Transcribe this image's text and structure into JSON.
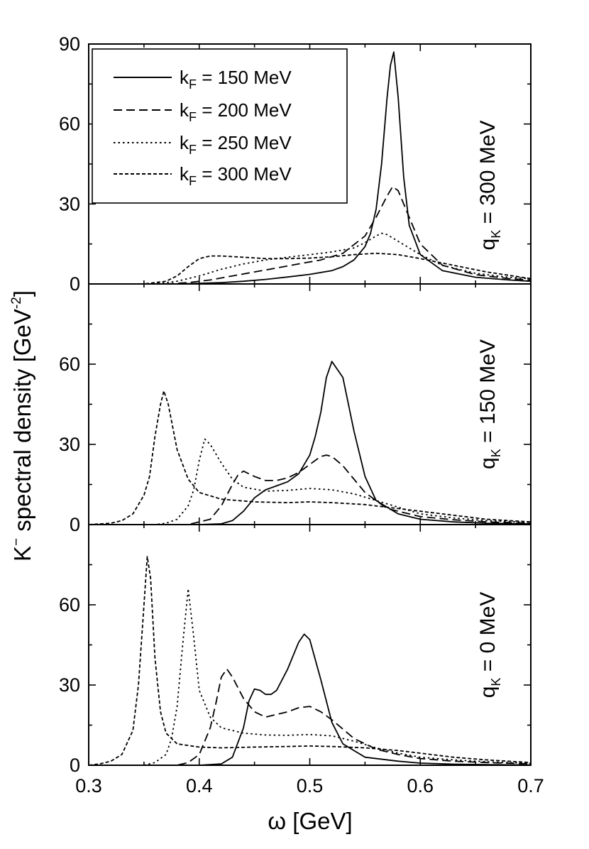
{
  "chart_data": {
    "type": "line",
    "xlabel": "ω [GeV]",
    "ylabel_main": "K",
    "ylabel_sup": "−",
    "ylabel_rest": " spectral density [GeV",
    "ylabel_unit_sup": "-2",
    "ylabel_close": "]",
    "xlim": [
      0.3,
      0.7
    ],
    "x_ticks": [
      0.3,
      0.4,
      0.5,
      0.6,
      0.7
    ],
    "x_tick_labels": [
      "0.3",
      "0.4",
      "0.5",
      "0.6",
      "0.7"
    ],
    "legend": {
      "placement": "top-left of top panel",
      "entries": [
        {
          "main": "k",
          "sub": "F",
          "rest": " = 150 MeV",
          "style": "solid"
        },
        {
          "main": "k",
          "sub": "F",
          "rest": " = 200 MeV",
          "style": "dash"
        },
        {
          "main": "k",
          "sub": "F",
          "rest": " = 250 MeV",
          "style": "dot"
        },
        {
          "main": "k",
          "sub": "F",
          "rest": " = 300 MeV",
          "style": "shortdash"
        }
      ]
    },
    "panels": [
      {
        "label_main": "q",
        "label_sub": "K",
        "label_rest": " = 300 MeV",
        "ylim": [
          0,
          90
        ],
        "y_ticks": [
          0,
          30,
          60,
          90
        ],
        "y_tick_labels": [
          "0",
          "30",
          "60",
          "90"
        ],
        "series": [
          {
            "name": "kF = 150 MeV",
            "style": "solid",
            "x": [
              0.3,
              0.38,
              0.4,
              0.42,
              0.44,
              0.46,
              0.48,
              0.5,
              0.52,
              0.53,
              0.54,
              0.55,
              0.555,
              0.56,
              0.565,
              0.57,
              0.573,
              0.576,
              0.58,
              0.585,
              0.59,
              0.6,
              0.62,
              0.65,
              0.68,
              0.7
            ],
            "y": [
              0,
              0,
              0.2,
              0.5,
              1,
              1.7,
              2.6,
              3.6,
              5,
              6.5,
              9,
              14,
              19,
              28,
              45,
              70,
              82,
              87,
              70,
              40,
              22,
              11,
              5,
              2.5,
              1.5,
              1
            ]
          },
          {
            "name": "kF = 200 MeV",
            "style": "dash",
            "x": [
              0.3,
              0.37,
              0.39,
              0.41,
              0.43,
              0.45,
              0.47,
              0.49,
              0.51,
              0.53,
              0.55,
              0.56,
              0.57,
              0.575,
              0.58,
              0.59,
              0.6,
              0.62,
              0.65,
              0.68,
              0.7
            ],
            "y": [
              0,
              0,
              0.5,
              1.5,
              3,
              4.5,
              6,
              7.5,
              9,
              11.5,
              18,
              25,
              33,
              36.5,
              35,
              25,
              15,
              7,
              3.5,
              2,
              1.5
            ]
          },
          {
            "name": "kF = 250 MeV",
            "style": "dot",
            "x": [
              0.3,
              0.36,
              0.38,
              0.4,
              0.42,
              0.44,
              0.46,
              0.48,
              0.5,
              0.52,
              0.54,
              0.55,
              0.56,
              0.565,
              0.57,
              0.58,
              0.6,
              0.62,
              0.65,
              0.68,
              0.7
            ],
            "y": [
              0,
              0,
              1,
              3,
              5.5,
              7.5,
              9,
              10,
              11,
              12,
              13.5,
              15.5,
              18,
              19,
              18.5,
              16,
              11,
              7,
              4,
              2.5,
              2
            ]
          },
          {
            "name": "kF = 300 MeV",
            "style": "shortdash",
            "x": [
              0.3,
              0.35,
              0.37,
              0.38,
              0.39,
              0.4,
              0.41,
              0.42,
              0.44,
              0.46,
              0.48,
              0.5,
              0.52,
              0.54,
              0.56,
              0.58,
              0.6,
              0.63,
              0.66,
              0.7
            ],
            "y": [
              0,
              0,
              1,
              3,
              6.5,
              9.5,
              10.5,
              10.5,
              10,
              9.5,
              9.5,
              9.7,
              10.2,
              11,
              11.5,
              11,
              9.5,
              7,
              4.5,
              2
            ]
          }
        ]
      },
      {
        "label_main": "q",
        "label_sub": "K",
        "label_rest": " = 150 MeV",
        "ylim": [
          0,
          90
        ],
        "y_ticks": [
          0,
          30,
          60
        ],
        "y_tick_labels": [
          "0",
          "30",
          "60"
        ],
        "series": [
          {
            "name": "kF = 150 MeV",
            "style": "solid",
            "x": [
              0.3,
              0.4,
              0.42,
              0.43,
              0.44,
              0.45,
              0.46,
              0.47,
              0.48,
              0.49,
              0.5,
              0.505,
              0.51,
              0.515,
              0.52,
              0.53,
              0.54,
              0.55,
              0.56,
              0.58,
              0.6,
              0.63,
              0.66,
              0.7
            ],
            "y": [
              0,
              0,
              0.3,
              1.5,
              5,
              10,
              13,
              14.5,
              16,
              19,
              26,
              33,
              42,
              55,
              61,
              55,
              35,
              18,
              9,
              4,
              2,
              1,
              0.5,
              0.3
            ]
          },
          {
            "name": "kF = 200 MeV",
            "style": "dash",
            "x": [
              0.3,
              0.39,
              0.41,
              0.42,
              0.43,
              0.435,
              0.44,
              0.45,
              0.46,
              0.47,
              0.48,
              0.49,
              0.5,
              0.51,
              0.515,
              0.52,
              0.53,
              0.54,
              0.55,
              0.57,
              0.6,
              0.63,
              0.66,
              0.7
            ],
            "y": [
              0,
              0,
              2,
              7,
              15,
              18.5,
              20,
              18,
              16.5,
              16.5,
              17.5,
              19.5,
              22.5,
              25.5,
              26,
              25.5,
              22,
              17,
              12,
              6,
              3,
              1.8,
              1,
              0.5
            ]
          },
          {
            "name": "kF = 250 MeV",
            "style": "dot",
            "x": [
              0.3,
              0.36,
              0.37,
              0.38,
              0.39,
              0.395,
              0.4,
              0.405,
              0.41,
              0.42,
              0.43,
              0.44,
              0.46,
              0.48,
              0.5,
              0.52,
              0.54,
              0.56,
              0.58,
              0.6,
              0.63,
              0.66,
              0.7
            ],
            "y": [
              0,
              0,
              0.5,
              2,
              7,
              13,
              24,
              32,
              30,
              23,
              17,
              14,
              12.5,
              12.8,
              13.5,
              13,
              11.5,
              9,
              6.5,
              4,
              2.5,
              1.5,
              0.8
            ]
          },
          {
            "name": "kF = 300 MeV",
            "style": "shortdash",
            "x": [
              0.3,
              0.32,
              0.33,
              0.34,
              0.35,
              0.355,
              0.36,
              0.365,
              0.368,
              0.372,
              0.38,
              0.39,
              0.4,
              0.42,
              0.45,
              0.48,
              0.5,
              0.52,
              0.55,
              0.58,
              0.6,
              0.63,
              0.66,
              0.7
            ],
            "y": [
              0,
              0.5,
              1.5,
              4,
              11,
              18,
              33,
              45,
              50,
              45,
              28,
              17,
              12,
              9.5,
              8.5,
              8.2,
              8.5,
              8.2,
              7.5,
              6,
              5,
              3.5,
              2,
              1
            ]
          }
        ]
      },
      {
        "label_main": "q",
        "label_sub": "K",
        "label_rest": " = 0 MeV",
        "ylim": [
          0,
          90
        ],
        "y_ticks": [
          0,
          30,
          60
        ],
        "y_tick_labels": [
          "0",
          "30",
          "60"
        ],
        "series": [
          {
            "name": "kF = 150 MeV",
            "style": "solid",
            "x": [
              0.3,
              0.4,
              0.42,
              0.43,
              0.44,
              0.445,
              0.45,
              0.455,
              0.46,
              0.465,
              0.47,
              0.48,
              0.49,
              0.495,
              0.5,
              0.51,
              0.52,
              0.53,
              0.55,
              0.58,
              0.6,
              0.63,
              0.66,
              0.7
            ],
            "y": [
              0,
              0,
              0.5,
              3,
              14,
              24,
              28.5,
              28,
              26.5,
              26.5,
              28,
              36,
              46,
              49,
              47,
              32,
              16,
              8,
              3,
              1.5,
              0.8,
              0.4,
              0.2,
              0.1
            ]
          },
          {
            "name": "kF = 200 MeV",
            "style": "dash",
            "x": [
              0.3,
              0.38,
              0.39,
              0.4,
              0.41,
              0.415,
              0.42,
              0.425,
              0.43,
              0.44,
              0.45,
              0.46,
              0.48,
              0.49,
              0.5,
              0.51,
              0.52,
              0.54,
              0.56,
              0.58,
              0.6,
              0.63,
              0.66,
              0.7
            ],
            "y": [
              0,
              0,
              1,
              4,
              14,
              23,
              33,
              36,
              33,
              25,
              20,
              18,
              20,
              21.5,
              22,
              20,
              17,
              10,
              6,
              4,
              2.5,
              1.5,
              1,
              0.5
            ]
          },
          {
            "name": "kF = 250 MeV",
            "style": "dot",
            "x": [
              0.3,
              0.35,
              0.36,
              0.37,
              0.375,
              0.38,
              0.385,
              0.39,
              0.395,
              0.4,
              0.41,
              0.42,
              0.44,
              0.46,
              0.48,
              0.5,
              0.52,
              0.54,
              0.56,
              0.58,
              0.6,
              0.63,
              0.66,
              0.7
            ],
            "y": [
              0,
              0,
              1,
              4,
              10,
              22,
              45,
              66,
              48,
              28,
              18,
              14,
              12,
              11.3,
              11.2,
              11.5,
              11,
              9,
              6.5,
              4.5,
              3,
              2,
              1.3,
              0.7
            ]
          },
          {
            "name": "kF = 300 MeV",
            "style": "shortdash",
            "x": [
              0.3,
              0.31,
              0.32,
              0.33,
              0.34,
              0.345,
              0.35,
              0.353,
              0.356,
              0.36,
              0.365,
              0.37,
              0.38,
              0.4,
              0.42,
              0.45,
              0.48,
              0.5,
              0.52,
              0.55,
              0.58,
              0.6,
              0.63,
              0.66,
              0.7
            ],
            "y": [
              0,
              0.5,
              1.5,
              4,
              13,
              30,
              60,
              78,
              70,
              40,
              20,
              12,
              8,
              6.8,
              6.5,
              6.8,
              7,
              7.2,
              7,
              6.5,
              5.5,
              4.5,
              3,
              2,
              1
            ]
          }
        ]
      }
    ]
  }
}
